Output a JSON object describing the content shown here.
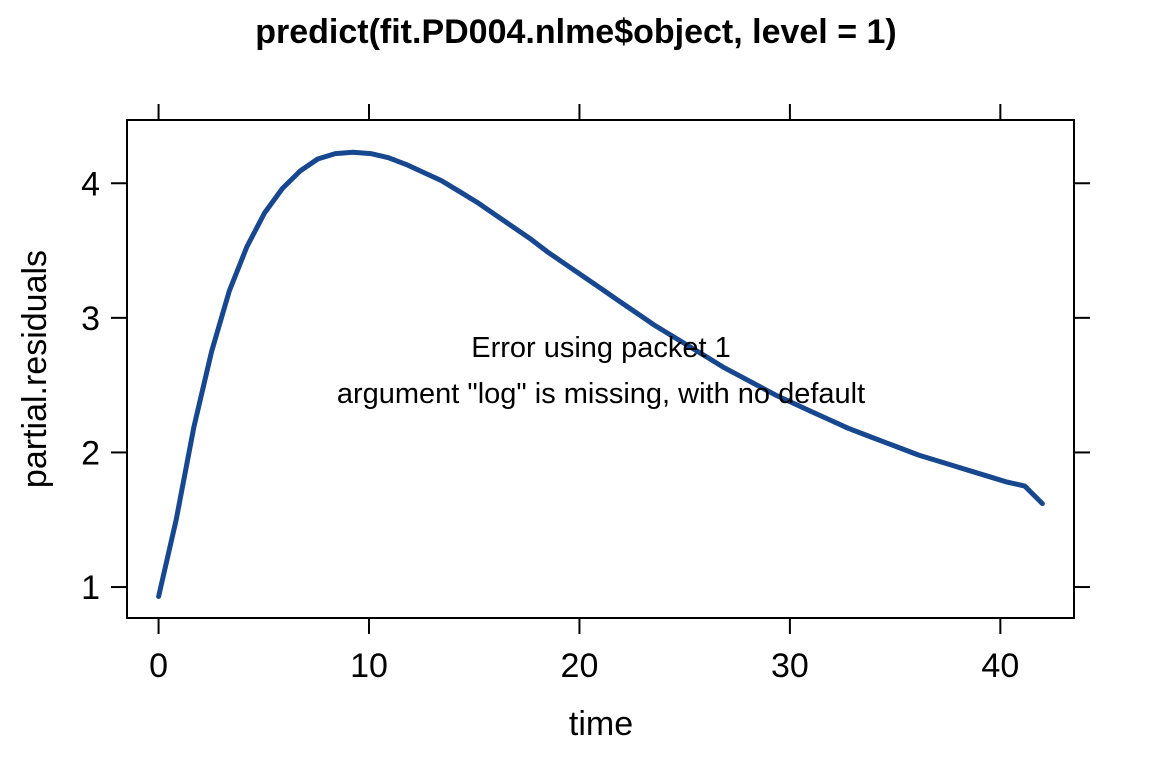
{
  "chart_data": {
    "type": "line",
    "title": "predict(fit.PD004.nlme$object, level = 1)",
    "xlabel": "time",
    "ylabel": "partial.residuals",
    "xlim": [
      -1.5,
      43.5
    ],
    "ylim": [
      0.77,
      4.47
    ],
    "xticks": [
      0,
      10,
      20,
      30,
      40
    ],
    "xtick_labels": [
      "0",
      "10",
      "20",
      "30",
      "40"
    ],
    "yticks": [
      1,
      2,
      3,
      4
    ],
    "ytick_labels": [
      "1",
      "2",
      "3",
      "4"
    ],
    "grid": false,
    "line_color": "#17478f",
    "annotations": [
      "Error using packet 1",
      "argument \"log\" is missing, with no default"
    ],
    "series": [
      {
        "values_x": [
          0,
          0.84,
          1.68,
          2.52,
          3.36,
          4.2,
          5.04,
          5.88,
          6.72,
          7.56,
          8.4,
          9.24,
          10.08,
          10.92,
          11.76,
          12.6,
          13.44,
          14.28,
          15.12,
          15.96,
          16.8,
          17.64,
          18.48,
          19.32,
          20.16,
          21,
          21.84,
          22.68,
          23.52,
          24.36,
          25.2,
          26.04,
          26.88,
          27.72,
          28.56,
          29.4,
          30.24,
          31.08,
          31.92,
          32.76,
          33.6,
          34.44,
          35.28,
          36.12,
          36.96,
          37.8,
          38.64,
          39.48,
          40.32,
          41.16,
          42
        ],
        "values_y": [
          0.93,
          1.5,
          2.19,
          2.75,
          3.2,
          3.53,
          3.78,
          3.96,
          4.09,
          4.18,
          4.22,
          4.23,
          4.22,
          4.19,
          4.14,
          4.08,
          4.02,
          3.94,
          3.86,
          3.77,
          3.68,
          3.59,
          3.49,
          3.4,
          3.31,
          3.22,
          3.13,
          3.04,
          2.95,
          2.87,
          2.79,
          2.71,
          2.63,
          2.56,
          2.49,
          2.42,
          2.36,
          2.3,
          2.24,
          2.18,
          2.13,
          2.08,
          2.03,
          1.98,
          1.94,
          1.9,
          1.86,
          1.82,
          1.78,
          1.75,
          1.62
        ]
      }
    ]
  }
}
